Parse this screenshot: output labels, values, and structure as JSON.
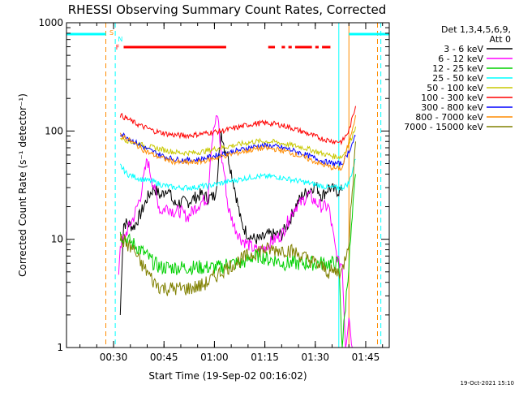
{
  "chart_data": {
    "type": "line",
    "title": "RHESSI Observing Summary Count Rates, Corrected",
    "xlabel": "Start Time (19-Sep-02 00:16:02)",
    "ylabel": "Corrected Count Rate (s⁻¹ detector⁻¹)",
    "yscale": "log",
    "ylim": [
      1,
      1000
    ],
    "xlim_minutes_after_start": [
      0,
      96
    ],
    "x_ticks": [
      "00:30",
      "00:45",
      "01:00",
      "01:15",
      "01:30",
      "01:45"
    ],
    "x_tick_minutes": [
      14,
      29,
      44,
      59,
      74,
      89
    ],
    "y_ticks": [
      "1",
      "10",
      "100",
      "1000"
    ],
    "y_tick_values": [
      1,
      10,
      100,
      1000
    ],
    "legend_header": [
      "Det 1,3,4,5,6,9,",
      "Att 0"
    ],
    "footer_date": "19-Oct-2021 15:10",
    "series": [
      {
        "name": "3 - 6 keV",
        "color": "#000000",
        "x": [
          16,
          16.5,
          17,
          18,
          20,
          22,
          24,
          26,
          28,
          30,
          32,
          34,
          36,
          38,
          40,
          42,
          44,
          45,
          46,
          47,
          48,
          50,
          52,
          54,
          56,
          58,
          60,
          62,
          64,
          66,
          68,
          70,
          72,
          74,
          76,
          78,
          80,
          81,
          82
        ],
        "y": [
          2,
          6,
          14,
          14,
          13,
          17,
          24,
          30,
          25,
          30,
          21,
          22,
          22,
          24,
          26,
          24,
          25,
          40,
          100,
          70,
          60,
          30,
          14,
          11,
          10,
          10,
          11,
          11,
          11,
          14,
          20,
          25,
          28,
          32,
          25,
          30,
          28,
          28,
          28
        ]
      },
      {
        "name": "6 - 12 keV",
        "color": "#ff00ff",
        "x": [
          15.5,
          16,
          17,
          18,
          20,
          22,
          24,
          26,
          28,
          30,
          32,
          34,
          36,
          38,
          40,
          42,
          43,
          44,
          45,
          46,
          47,
          48,
          50,
          52,
          54,
          56,
          58,
          60,
          62,
          64,
          66,
          68,
          70,
          72,
          74,
          76,
          78,
          80,
          81,
          82,
          83,
          84,
          85
        ],
        "y": [
          5,
          9,
          10,
          12,
          16,
          25,
          55,
          30,
          18,
          20,
          18,
          18,
          16,
          19,
          22,
          24,
          70,
          110,
          140,
          60,
          40,
          20,
          13,
          10,
          9,
          8,
          8,
          9,
          10,
          11,
          15,
          20,
          22,
          26,
          22,
          20,
          20,
          8,
          6,
          6,
          1,
          2,
          1
        ]
      },
      {
        "name": "12 - 25 keV",
        "color": "#00d000",
        "x": [
          16,
          18,
          20,
          22,
          24,
          26,
          28,
          30,
          32,
          34,
          36,
          38,
          40,
          42,
          44,
          46,
          48,
          50,
          52,
          54,
          56,
          58,
          60,
          62,
          64,
          66,
          68,
          70,
          72,
          74,
          76,
          78,
          80,
          81,
          82,
          84,
          86
        ],
        "y": [
          11,
          10,
          9,
          8,
          7,
          6,
          5.5,
          5.5,
          5.5,
          5.5,
          5.5,
          5.5,
          5.5,
          5.5,
          5.5,
          5.5,
          6,
          6,
          6,
          6.5,
          7,
          7,
          6.5,
          6.5,
          6,
          6,
          6,
          6,
          6,
          6,
          6,
          6,
          6,
          6,
          1,
          6,
          40
        ]
      },
      {
        "name": "25 - 50 keV",
        "color": "#00ffff",
        "x": [
          16,
          18,
          20,
          22,
          24,
          26,
          28,
          30,
          32,
          34,
          36,
          38,
          40,
          42,
          44,
          46,
          48,
          50,
          52,
          54,
          56,
          58,
          60,
          62,
          64,
          66,
          68,
          70,
          72,
          74,
          76,
          78,
          80,
          81,
          82,
          84,
          86
        ],
        "y": [
          48,
          40,
          38,
          36,
          35,
          34,
          32,
          31,
          30,
          30,
          30,
          30,
          31,
          31,
          32,
          33,
          34,
          35,
          36,
          37,
          38,
          38,
          38,
          38,
          37,
          36,
          35,
          34,
          33,
          32,
          31,
          30,
          30,
          30,
          30,
          33,
          55
        ]
      },
      {
        "name": "50 - 100 keV",
        "color": "#c8c800",
        "x": [
          16,
          18,
          20,
          22,
          24,
          26,
          28,
          30,
          32,
          34,
          36,
          38,
          40,
          42,
          44,
          46,
          48,
          50,
          52,
          54,
          56,
          58,
          60,
          62,
          64,
          66,
          68,
          70,
          72,
          74,
          76,
          78,
          80,
          81,
          82,
          84,
          86
        ],
        "y": [
          88,
          82,
          78,
          75,
          72,
          70,
          68,
          66,
          64,
          63,
          63,
          63,
          64,
          66,
          68,
          70,
          72,
          74,
          76,
          78,
          80,
          80,
          80,
          79,
          77,
          75,
          73,
          71,
          68,
          65,
          62,
          60,
          58,
          58,
          58,
          75,
          110
        ]
      },
      {
        "name": "100 - 300 keV",
        "color": "#ff0000",
        "x": [
          16,
          18,
          20,
          22,
          24,
          26,
          28,
          30,
          32,
          34,
          36,
          38,
          40,
          42,
          44,
          46,
          48,
          50,
          52,
          54,
          56,
          58,
          60,
          62,
          64,
          66,
          68,
          70,
          72,
          74,
          76,
          78,
          80,
          81,
          82,
          84,
          86
        ],
        "y": [
          140,
          130,
          120,
          112,
          106,
          100,
          97,
          94,
          92,
          91,
          91,
          92,
          94,
          96,
          98,
          100,
          103,
          106,
          110,
          114,
          117,
          118,
          118,
          116,
          113,
          109,
          104,
          99,
          94,
          89,
          85,
          82,
          80,
          80,
          80,
          100,
          170
        ]
      },
      {
        "name": "300 - 800 keV",
        "color": "#0000ff",
        "x": [
          16,
          18,
          20,
          22,
          24,
          26,
          28,
          30,
          32,
          34,
          36,
          38,
          40,
          42,
          44,
          46,
          48,
          50,
          52,
          54,
          56,
          58,
          60,
          62,
          64,
          66,
          68,
          70,
          72,
          74,
          76,
          78,
          80,
          81,
          82,
          84,
          86
        ],
        "y": [
          95,
          88,
          80,
          74,
          68,
          64,
          60,
          57,
          55,
          54,
          54,
          54,
          55,
          57,
          59,
          61,
          63,
          65,
          67,
          70,
          72,
          73,
          73,
          72,
          70,
          68,
          65,
          62,
          59,
          56,
          53,
          51,
          50,
          50,
          50,
          65,
          90
        ]
      },
      {
        "name": "800 - 7000 keV",
        "color": "#ff8c00",
        "x": [
          16,
          18,
          20,
          22,
          24,
          26,
          28,
          30,
          32,
          34,
          36,
          38,
          40,
          42,
          44,
          46,
          48,
          50,
          52,
          54,
          56,
          58,
          60,
          62,
          64,
          66,
          68,
          70,
          72,
          74,
          76,
          78,
          80,
          81,
          82,
          84,
          86
        ],
        "y": [
          92,
          85,
          77,
          70,
          64,
          60,
          57,
          54,
          52,
          51,
          51,
          51,
          52,
          54,
          56,
          58,
          60,
          62,
          64,
          66,
          68,
          69,
          69,
          68,
          66,
          64,
          61,
          58,
          55,
          52,
          49,
          47,
          45,
          45,
          45,
          80,
          140
        ]
      },
      {
        "name": "7000 - 15000 keV",
        "color": "#808000",
        "x": [
          16,
          18,
          20,
          22,
          24,
          26,
          28,
          30,
          32,
          34,
          36,
          38,
          40,
          42,
          44,
          46,
          48,
          50,
          52,
          54,
          56,
          58,
          60,
          62,
          64,
          66,
          68,
          70,
          72,
          74,
          76,
          78,
          80,
          81,
          82,
          84,
          86
        ],
        "y": [
          10,
          9,
          8,
          6,
          5,
          4,
          3.6,
          3.5,
          3.5,
          3.5,
          3.5,
          3.6,
          3.7,
          4,
          4.5,
          5,
          5.5,
          6,
          6.5,
          7,
          7.5,
          8,
          8,
          8,
          8,
          8,
          7.5,
          7,
          6.5,
          6,
          5.5,
          5,
          5,
          5,
          5,
          10,
          80
        ]
      }
    ],
    "flag_lines": [
      {
        "label": "",
        "color": "#ff8c00",
        "segments": [
          [
            -14,
            11.7
          ],
          [
            84,
            96
          ]
        ]
      },
      {
        "label": "S",
        "color": "#ff8c00",
        "segments": []
      },
      {
        "label": "",
        "color": "#00ffff",
        "segments": [
          [
            -14,
            11.7
          ],
          [
            84,
            96
          ]
        ]
      },
      {
        "label": "N",
        "color": "#00ffff",
        "segments": []
      },
      {
        "label": "F",
        "color": "#ff0000",
        "segments": [
          [
            17,
            47.5
          ],
          [
            60,
            62
          ],
          [
            64,
            65
          ],
          [
            66,
            67
          ],
          [
            68,
            73
          ],
          [
            74,
            75
          ],
          [
            76,
            78.5
          ]
        ]
      }
    ],
    "vertical_markers": [
      {
        "x": -14,
        "color": "#00ffff",
        "dashed": false
      },
      {
        "x": 11.7,
        "color": "#ff8c00",
        "dashed": true
      },
      {
        "x": 14.5,
        "color": "#00ffff",
        "dashed": true
      },
      {
        "x": 81,
        "color": "#00ffff",
        "dashed": false
      },
      {
        "x": 84,
        "color": "#ff8c00",
        "dashed": false
      },
      {
        "x": 92.5,
        "color": "#ff8c00",
        "dashed": true
      },
      {
        "x": 93.5,
        "color": "#00ffff",
        "dashed": true
      }
    ]
  }
}
